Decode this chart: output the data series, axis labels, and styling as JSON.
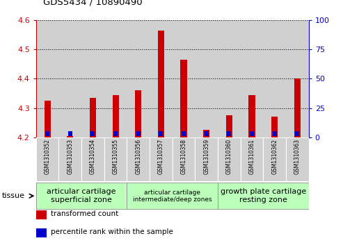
{
  "title": "GDS5434 / 10890490",
  "samples": [
    "GSM1310352",
    "GSM1310353",
    "GSM1310354",
    "GSM1310355",
    "GSM1310356",
    "GSM1310357",
    "GSM1310358",
    "GSM1310359",
    "GSM1310360",
    "GSM1310361",
    "GSM1310362",
    "GSM1310363"
  ],
  "red_values": [
    4.325,
    4.205,
    4.335,
    4.345,
    4.36,
    4.565,
    4.465,
    4.225,
    4.275,
    4.345,
    4.27,
    4.4
  ],
  "blue_pct": [
    7,
    7,
    7,
    7,
    10,
    10,
    10,
    3,
    7,
    7,
    7,
    10
  ],
  "ylim_left": [
    4.2,
    4.6
  ],
  "ylim_right": [
    0,
    100
  ],
  "y_ticks_left": [
    4.2,
    4.3,
    4.4,
    4.5,
    4.6
  ],
  "y_ticks_right": [
    0,
    25,
    50,
    75,
    100
  ],
  "base_value": 4.2,
  "red_bar_color": "#cc0000",
  "blue_bar_color": "#0000cc",
  "col_bg_color": "#d0d0d0",
  "tissue_groups": [
    {
      "start": 0,
      "end": 4,
      "label": "articular cartilage\nsuperficial zone",
      "color": "#bbffbb",
      "fontsize": 8
    },
    {
      "start": 4,
      "end": 8,
      "label": "articular cartilage\nintermediate/deep zones",
      "color": "#bbffbb",
      "fontsize": 6.5
    },
    {
      "start": 8,
      "end": 12,
      "label": "growth plate cartilage\nresting zone",
      "color": "#bbffbb",
      "fontsize": 8
    }
  ],
  "tissue_label": "tissue",
  "legend_items": [
    {
      "color": "#cc0000",
      "label": "transformed count"
    },
    {
      "color": "#0000cc",
      "label": "percentile rank within the sample"
    }
  ]
}
